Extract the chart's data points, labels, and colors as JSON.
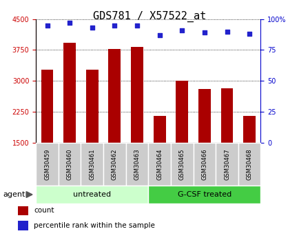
{
  "title": "GDS781 / X57522_at",
  "samples": [
    "GSM30459",
    "GSM30460",
    "GSM30461",
    "GSM30462",
    "GSM30463",
    "GSM30464",
    "GSM30465",
    "GSM30466",
    "GSM30467",
    "GSM30468"
  ],
  "counts": [
    3280,
    3920,
    3270,
    3780,
    3820,
    2160,
    3000,
    2810,
    2820,
    2160
  ],
  "percentiles": [
    95,
    97,
    93,
    95,
    95,
    87,
    91,
    89,
    90,
    88
  ],
  "ylim_left": [
    1500,
    4500
  ],
  "ylim_right": [
    0,
    100
  ],
  "yticks_left": [
    1500,
    2250,
    3000,
    3750,
    4500
  ],
  "yticks_right": [
    0,
    25,
    50,
    75,
    100
  ],
  "bar_color": "#aa0000",
  "dot_color": "#2222cc",
  "bar_bottom": 1500,
  "groups": [
    {
      "label": "untreated",
      "start": 0,
      "end": 5,
      "color": "#ccffcc"
    },
    {
      "label": "G-CSF treated",
      "start": 5,
      "end": 10,
      "color": "#44cc44"
    }
  ],
  "group_label": "agent",
  "legend_items": [
    {
      "color": "#aa0000",
      "label": "count"
    },
    {
      "color": "#2222cc",
      "label": "percentile rank within the sample"
    }
  ],
  "title_fontsize": 11,
  "tick_label_fontsize": 7,
  "axis_label_color_left": "#cc0000",
  "axis_label_color_right": "#0000cc",
  "sample_box_color": "#cccccc",
  "bar_width": 0.55
}
